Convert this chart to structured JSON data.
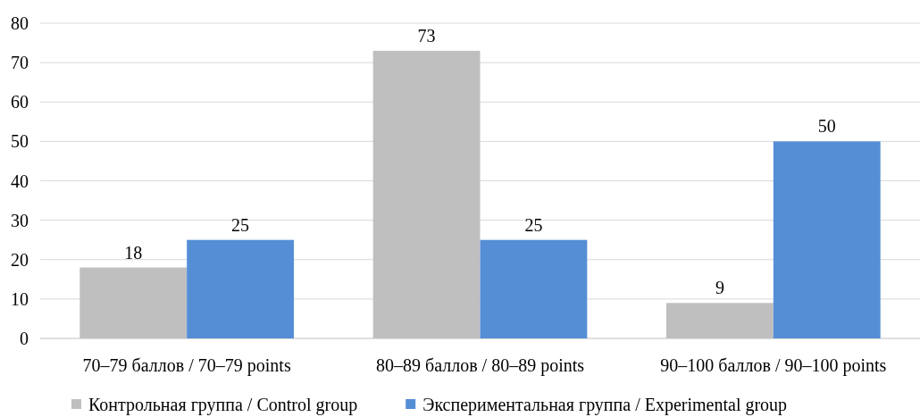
{
  "chart_data": {
    "type": "bar",
    "categories": [
      "70–79 баллов / 70–79 points",
      "80–89 баллов / 80–89 points",
      "90–100 баллов / 90–100 points"
    ],
    "series": [
      {
        "name": "Контрольная группа / Control group",
        "color": "#bfbfbf",
        "values": [
          18,
          73,
          9
        ]
      },
      {
        "name": "Экспериментальная группа / Experimental group",
        "color": "#558ed5",
        "values": [
          25,
          25,
          50
        ]
      }
    ],
    "ylim": [
      0,
      80
    ],
    "yticks": [
      0,
      10,
      20,
      30,
      40,
      50,
      60,
      70,
      80
    ],
    "grid": "y",
    "legend": "bottom",
    "data_labels": true
  }
}
